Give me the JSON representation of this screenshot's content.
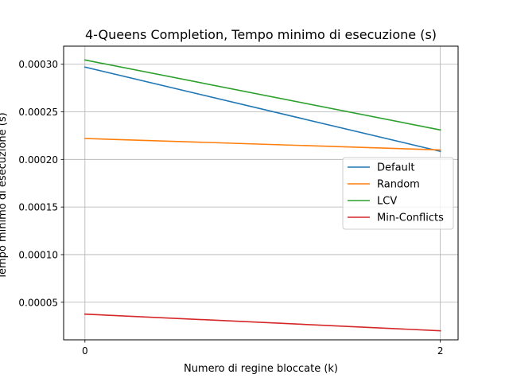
{
  "chart_data": {
    "type": "line",
    "title": "4-Queens Completion, Tempo minimo di esecuzione (s)",
    "xlabel": "Numero di regine bloccate (k)",
    "ylabel": "Tempo minimo di esecuzione (s)",
    "x": [
      0,
      2
    ],
    "x_ticks": [
      0,
      2
    ],
    "x_tick_labels": [
      "0",
      "2"
    ],
    "xlim": [
      -0.12,
      2.1
    ],
    "ylim": [
      1.05e-05,
      0.000319
    ],
    "y_ticks": [
      5e-05,
      0.0001,
      0.00015,
      0.0002,
      0.00025,
      0.0003
    ],
    "y_tick_labels": [
      "0.00005",
      "0.00010",
      "0.00015",
      "0.00020",
      "0.00025",
      "0.00030"
    ],
    "grid": true,
    "legend_position": "center-right",
    "series": [
      {
        "name": "Default",
        "color": "#1f77b4",
        "values": [
          0.000297,
          0.0002085
        ]
      },
      {
        "name": "Random",
        "color": "#ff7f0e",
        "values": [
          0.000222,
          0.00021
        ]
      },
      {
        "name": "LCV",
        "color": "#2ca02c",
        "values": [
          0.0003045,
          0.000231
        ]
      },
      {
        "name": "Min-Conflicts",
        "color": "#d62728",
        "values": [
          3.75e-05,
          2e-05
        ]
      }
    ]
  }
}
